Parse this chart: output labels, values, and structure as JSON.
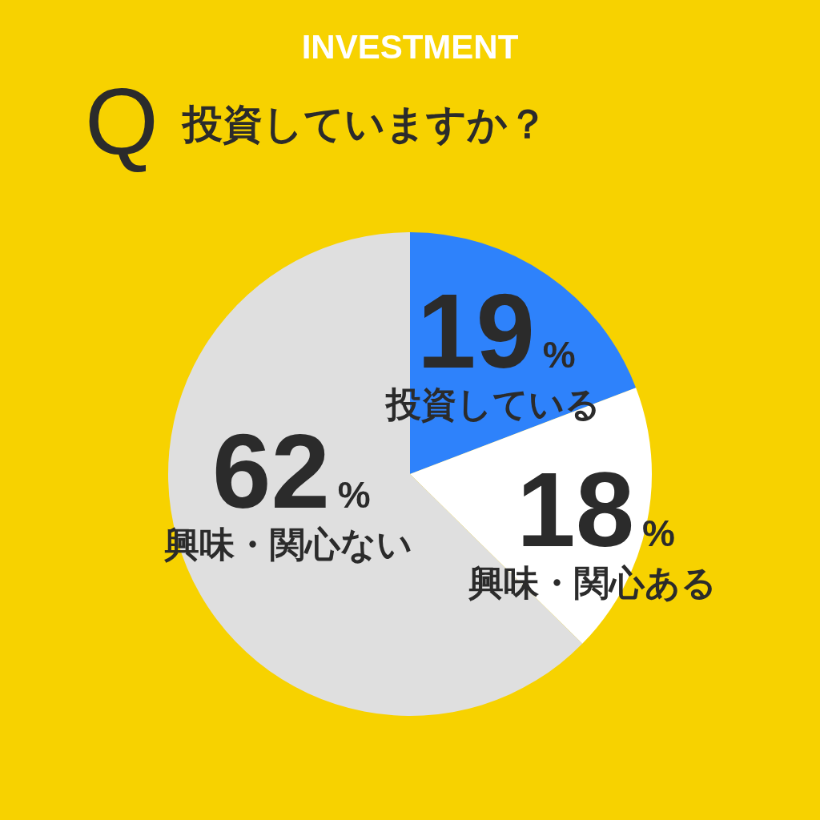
{
  "chart_data": {
    "type": "pie",
    "title": "INVESTMENT",
    "subtitle": "Q 投資していますか？",
    "categories": [
      "投資している",
      "興味・関心ある",
      "興味・関心ない"
    ],
    "values": [
      19,
      18,
      62
    ],
    "colors": [
      "#2e82fb",
      "#ffffff",
      "#dfdfdf"
    ],
    "value_labels": [
      "19%",
      "18%",
      "62%"
    ],
    "legend": false
  }
}
